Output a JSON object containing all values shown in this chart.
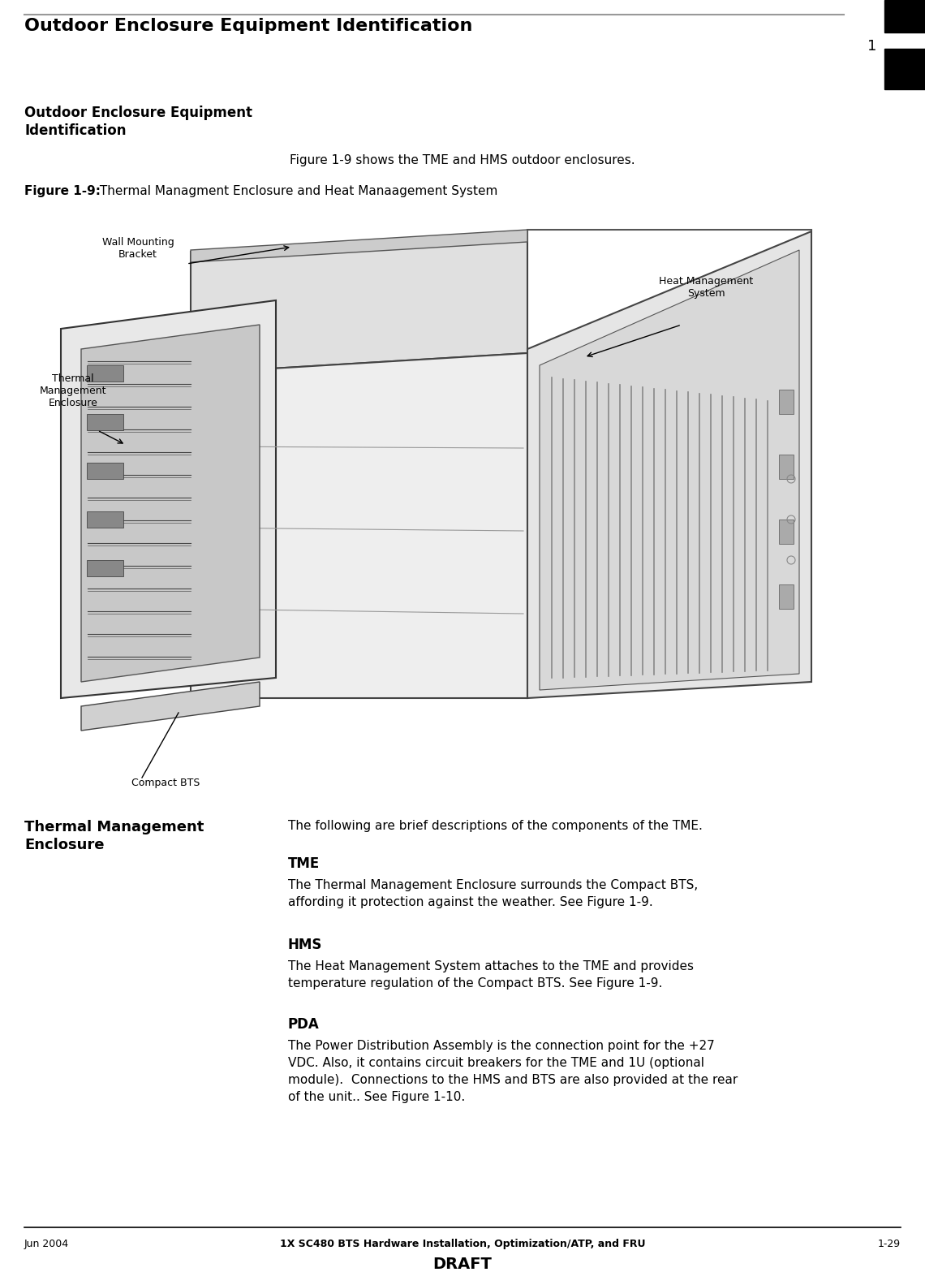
{
  "page_width": 11.4,
  "page_height": 15.67,
  "dpi": 100,
  "bg_color": "#ffffff",
  "header_title": "Outdoor Enclosure Equipment Identification",
  "header_line_color": "#999999",
  "chapter_number": "1",
  "right_bar_color": "#000000",
  "section_heading_line1": "Outdoor Enclosure Equipment",
  "section_heading_line2": "Identification",
  "intro_text": "Figure 1-9 shows the TME and HMS outdoor enclosures.",
  "figure_caption_bold": "Figure 1-9:",
  "figure_caption_normal": " Thermal Managment Enclosure and Heat Manaagement System",
  "sub_heading_line1": "Thermal Management",
  "sub_heading_line2": "Enclosure",
  "body_text_intro": "The following are brief descriptions of the components of the TME.",
  "tme_label": "TME",
  "tme_text": "The Thermal Management Enclosure surrounds the Compact BTS,\naffording it protection against the weather. See Figure 1-9.",
  "hms_label": "HMS",
  "hms_text": "The Heat Management System attaches to the TME and provides\ntemperature regulation of the Compact BTS. See Figure 1-9.",
  "pda_label": "PDA",
  "pda_text": "The Power Distribution Assembly is the connection point for the +27\nVDC. Also, it contains circuit breakers for the TME and 1U (optional\nmodule).  Connections to the HMS and BTS are also provided at the rear\nof the unit.. See Figure 1-10.",
  "footer_left": "Jun 2004",
  "footer_center": "1X SC480 BTS Hardware Installation, Optimization/ATP, and FRU",
  "footer_draft": "DRAFT",
  "footer_right": "1-29",
  "footer_line_color": "#000000",
  "ann_wall_mounting": "Wall Mounting\nBracket",
  "ann_thermal_mgmt": "Thermal\nManagement\nEnclosure",
  "ann_heat_mgmt": "Heat Management\nSystem",
  "ann_compact_bts": "Compact BTS",
  "text_color": "#000000"
}
